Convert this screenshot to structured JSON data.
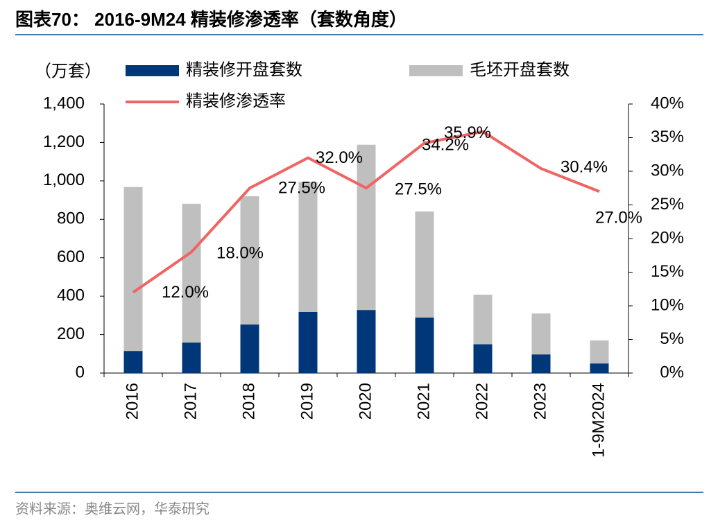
{
  "chart_data": {
    "type": "bar-line",
    "title": "图表70： 2016-9M24 精装修渗透率（套数角度）",
    "y_label": "（万套）",
    "source": "资料来源：奥维云网，华泰研究",
    "categories": [
      "2016",
      "2017",
      "2018",
      "2019",
      "2020",
      "2021",
      "2022",
      "2023",
      "1-9M2024"
    ],
    "series": [
      {
        "name": "精装修开盘套数",
        "type": "bar",
        "color": "#003778",
        "values": [
          115,
          159,
          253,
          318,
          328,
          289,
          150,
          97,
          50
        ]
      },
      {
        "name": "毛坯开盘套数",
        "type": "bar",
        "color": "#bfbfbf",
        "values": [
          853,
          722,
          667,
          677,
          860,
          552,
          258,
          213,
          120
        ]
      },
      {
        "name": "精装修渗透率",
        "type": "line",
        "axis": "y2",
        "color": "#f06464",
        "values": [
          12.0,
          18.0,
          27.5,
          32.0,
          27.5,
          34.2,
          35.9,
          30.4,
          27.0
        ],
        "value_labels": [
          "12.0%",
          "18.0%",
          "27.5%",
          "32.0%",
          "27.5%",
          "34.2%",
          "35.9%",
          "30.4%",
          "27.0%"
        ]
      }
    ],
    "ylim": [
      0,
      1400
    ],
    "yticks": [
      0,
      200,
      400,
      600,
      800,
      {
        "value": 1000,
        "label": "1,000"
      },
      {
        "value": 1200,
        "label": "1,200"
      },
      {
        "value": 1400,
        "label": "1,400"
      }
    ],
    "y2lim": [
      0,
      40
    ],
    "y2ticks": [
      {
        "value": 0,
        "label": "0%"
      },
      {
        "value": 5,
        "label": "5%"
      },
      {
        "value": 10,
        "label": "10%"
      },
      {
        "value": 15,
        "label": "15%"
      },
      {
        "value": 20,
        "label": "20%"
      },
      {
        "value": 25,
        "label": "25%"
      },
      {
        "value": 30,
        "label": "30%"
      },
      {
        "value": 35,
        "label": "35%"
      },
      {
        "value": 40,
        "label": "40%"
      }
    ]
  }
}
